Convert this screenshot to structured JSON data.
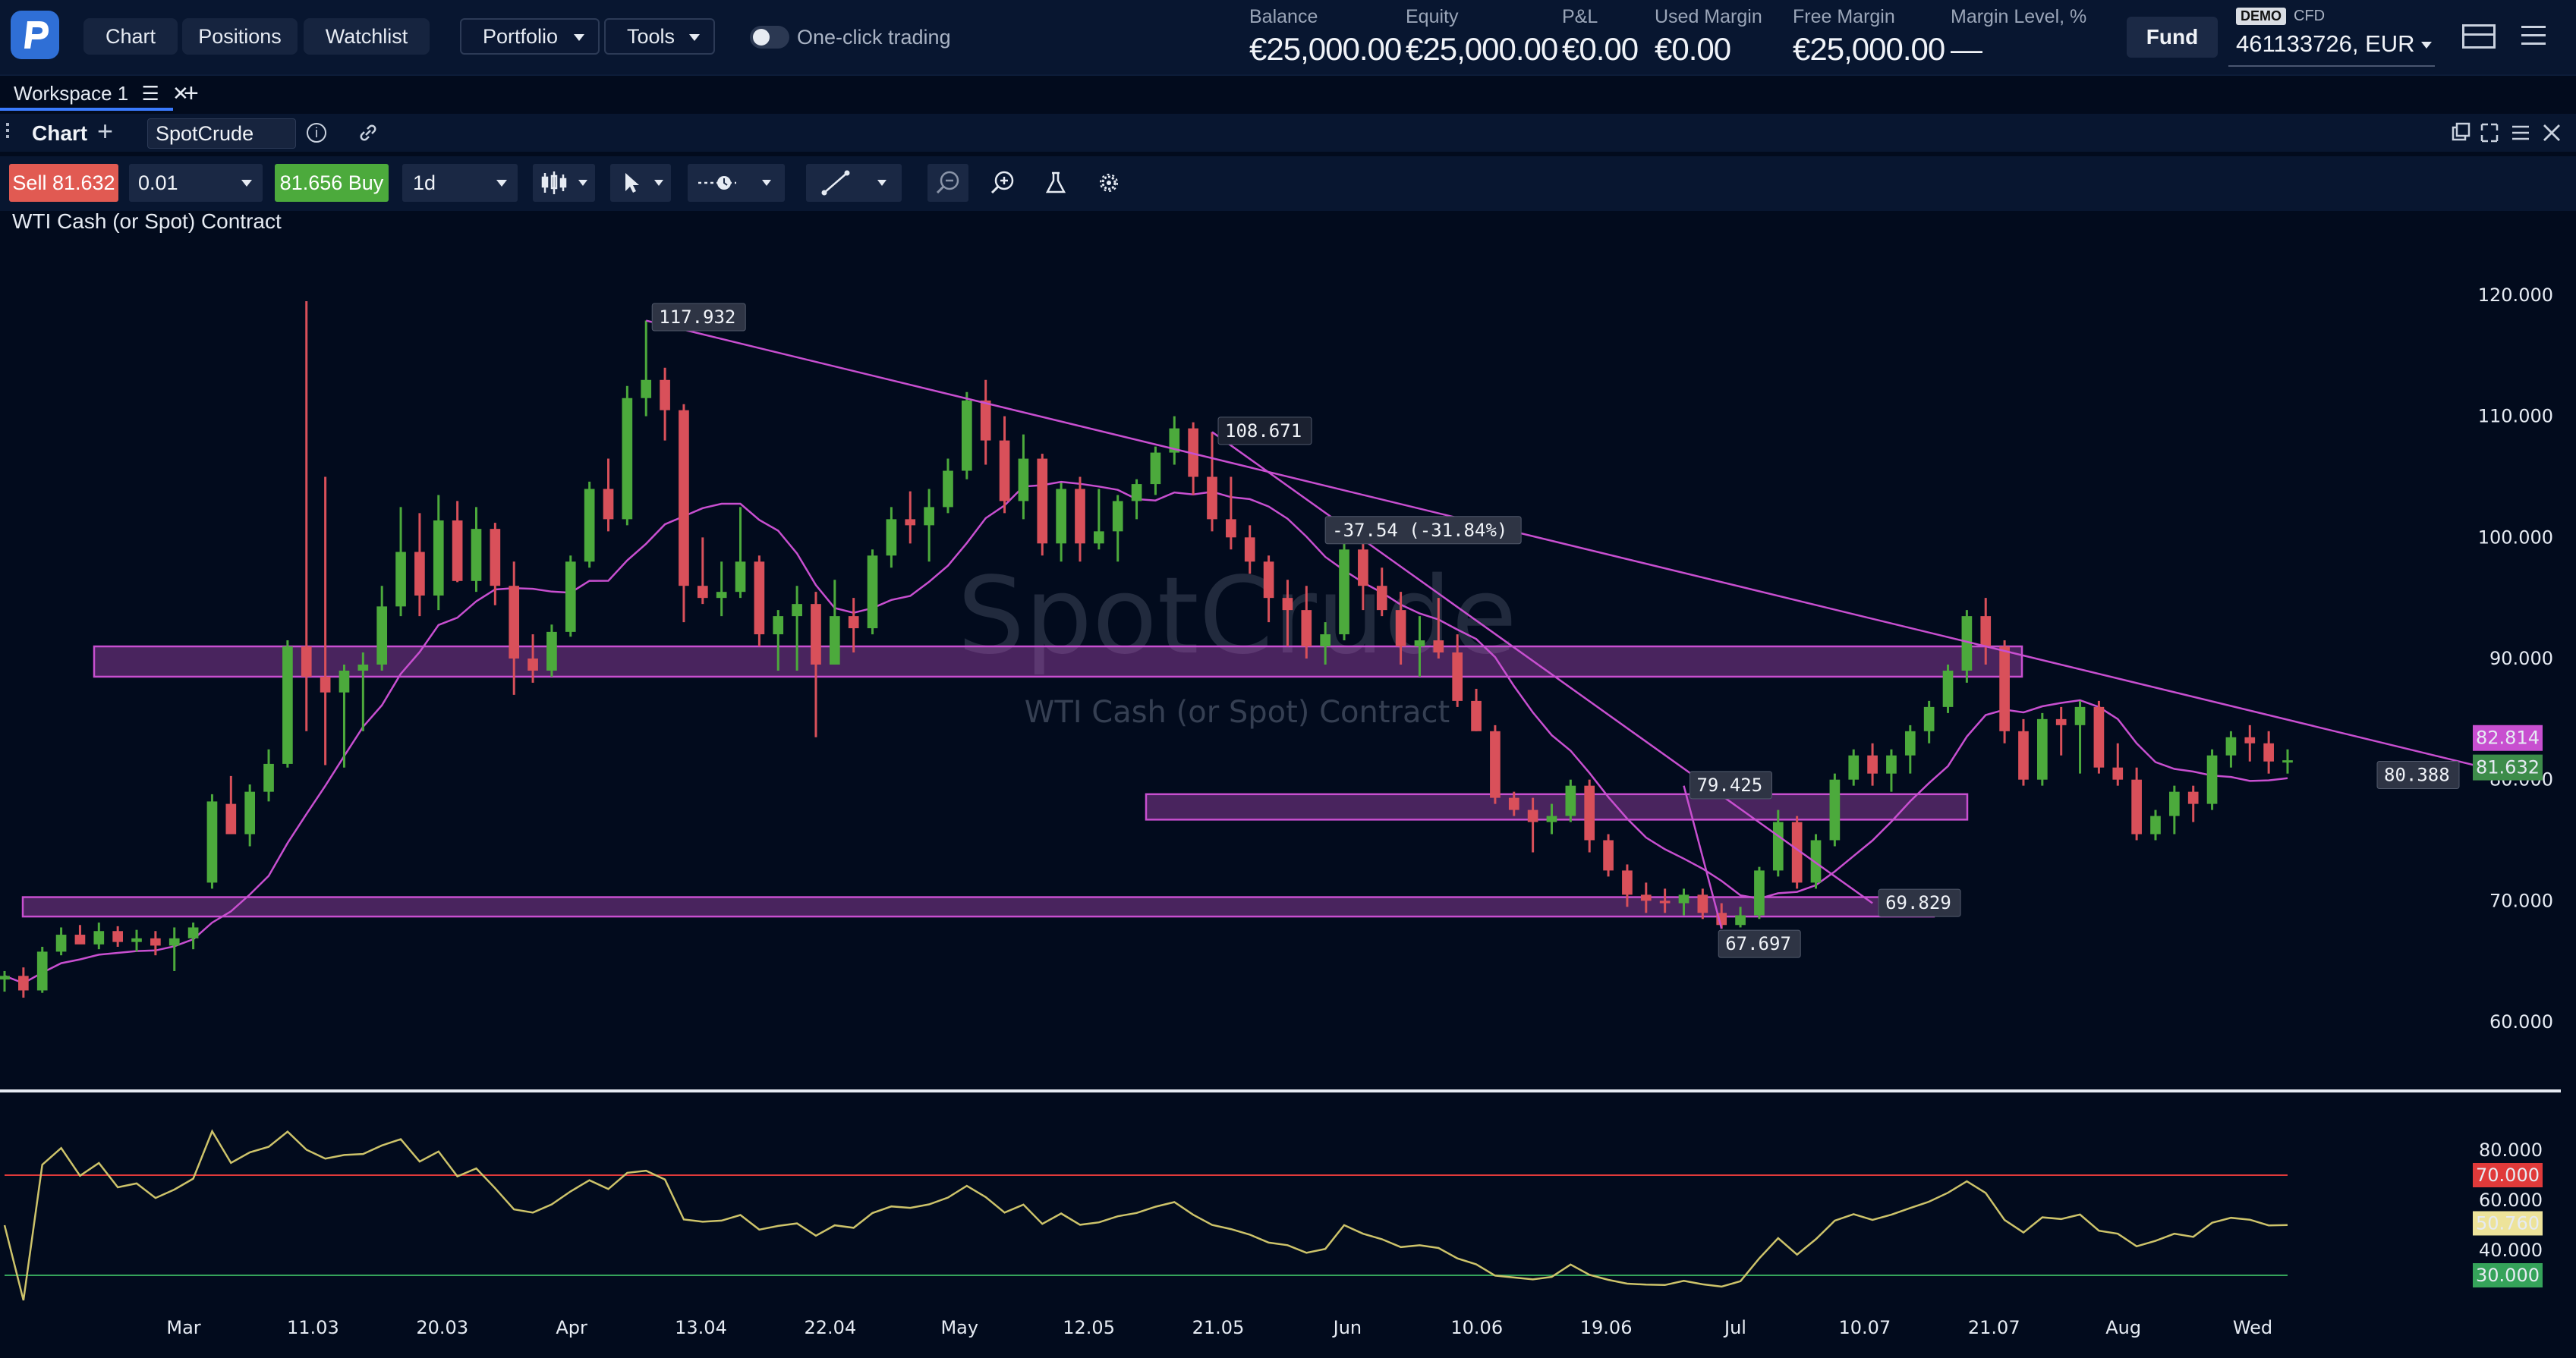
{
  "nav": {
    "items": [
      {
        "label": "Chart"
      },
      {
        "label": "Positions"
      },
      {
        "label": "Watchlist"
      }
    ],
    "portfolio_label": "Portfolio",
    "tools_label": "Tools",
    "one_click_label": "One-click trading"
  },
  "account": {
    "fields": [
      {
        "label": "Balance",
        "value": "€25,000.00"
      },
      {
        "label": "Equity",
        "value": "€25,000.00"
      },
      {
        "label": "P&L",
        "value": "€0.00"
      },
      {
        "label": "Used Margin",
        "value": "€0.00"
      },
      {
        "label": "Free Margin",
        "value": "€25,000.00"
      },
      {
        "label": "Margin Level, %",
        "value": "—"
      }
    ],
    "fund_label": "Fund",
    "demo_badge": "DEMO",
    "cfd_label": "CFD",
    "account_id": "461133726, EUR"
  },
  "workspace": {
    "tab_label": "Workspace 1",
    "menu_glyph": "☰",
    "close_glyph": "✕",
    "add_glyph": "+"
  },
  "chart_header": {
    "title": "Chart",
    "add_glyph": "+",
    "symbol": "SpotCrude",
    "info_glyph": "i"
  },
  "toolbar": {
    "sell_label": "Sell",
    "sell_price": "81.632",
    "quantity": "0.01",
    "buy_price": "81.656",
    "buy_label": "Buy",
    "timeframe": "1d"
  },
  "chart_description": "WTI Cash (or Spot) Contract",
  "watermark": {
    "symbol": "SpotCrude",
    "description": "WTI Cash (or Spot) Contract"
  },
  "colors": {
    "up": "#4caa3c",
    "down": "#d9505a",
    "indicator": "#c84fd0",
    "rsi": "#cdc36a",
    "sell": "#e15a52",
    "buy": "#4caa3c"
  },
  "chart_data": {
    "type": "candlestick",
    "symbol": "SpotCrude",
    "y_ticks": [
      "120.000",
      "110.000",
      "100.000",
      "90.000",
      "80.000",
      "70.000",
      "60.000"
    ],
    "y_tick_values": [
      120,
      110,
      100,
      90,
      80,
      70,
      60
    ],
    "x_ticks": [
      "Mar",
      "11.03",
      "20.03",
      "Apr",
      "13.04",
      "22.04",
      "May",
      "12.05",
      "21.05",
      "Jun",
      "10.06",
      "19.06",
      "Jul",
      "10.07",
      "21.07",
      "Aug",
      "Wed"
    ],
    "annotations": [
      {
        "label": "117.932",
        "kind": "high"
      },
      {
        "label": "108.671",
        "kind": "point"
      },
      {
        "label": "-37.54 (-31.84%)",
        "kind": "measure"
      },
      {
        "label": "79.425",
        "kind": "point"
      },
      {
        "label": "69.829",
        "kind": "point"
      },
      {
        "label": "67.697",
        "kind": "low"
      },
      {
        "label": "80.388",
        "kind": "trendline-end"
      }
    ],
    "price_tags": [
      {
        "label": "82.814",
        "color": "#c84fd0"
      },
      {
        "label": "81.632",
        "color": "#3d8c4a"
      }
    ],
    "candles_ohlc": [
      [
        63.5,
        64.2,
        62.5,
        63.8
      ],
      [
        63.8,
        64.5,
        62.0,
        62.6
      ],
      [
        62.6,
        66.2,
        62.4,
        65.8
      ],
      [
        65.8,
        67.8,
        65.5,
        67.2
      ],
      [
        67.2,
        68.0,
        66.5,
        66.4
      ],
      [
        66.4,
        68.2,
        66.0,
        67.5
      ],
      [
        67.5,
        67.9,
        66.2,
        66.6
      ],
      [
        66.6,
        67.6,
        65.8,
        66.9
      ],
      [
        66.9,
        67.5,
        65.5,
        66.3
      ],
      [
        66.3,
        67.8,
        64.2,
        66.9
      ],
      [
        66.9,
        68.2,
        66.0,
        67.8
      ],
      [
        71.5,
        78.8,
        71.0,
        78.2
      ],
      [
        78.0,
        80.3,
        76.5,
        75.5
      ],
      [
        75.5,
        79.6,
        74.5,
        79.0
      ],
      [
        79.0,
        82.5,
        78.2,
        81.3
      ],
      [
        81.3,
        91.5,
        81.0,
        91.0
      ],
      [
        91.0,
        119.5,
        84.0,
        88.5
      ],
      [
        88.5,
        105.0,
        81.2,
        87.2
      ],
      [
        87.2,
        89.5,
        81.0,
        89.0
      ],
      [
        89.0,
        90.5,
        84.0,
        89.5
      ],
      [
        89.5,
        96.0,
        89.0,
        94.3
      ],
      [
        94.3,
        102.5,
        93.5,
        98.8
      ],
      [
        98.8,
        102.0,
        93.5,
        95.2
      ],
      [
        95.2,
        103.5,
        94.0,
        101.4
      ],
      [
        101.4,
        103.0,
        96.3,
        96.4
      ],
      [
        96.4,
        102.5,
        95.5,
        100.7
      ],
      [
        100.7,
        101.2,
        94.4,
        96.0
      ],
      [
        96.0,
        98.0,
        87.0,
        90.0
      ],
      [
        90.0,
        92.0,
        88.0,
        89.0
      ],
      [
        89.0,
        92.8,
        88.5,
        92.2
      ],
      [
        92.2,
        98.5,
        91.8,
        98.0
      ],
      [
        98.0,
        104.6,
        97.5,
        104.0
      ],
      [
        104.0,
        106.5,
        100.5,
        101.5
      ],
      [
        101.5,
        112.5,
        101.0,
        111.5
      ],
      [
        111.5,
        117.9,
        110.0,
        113.0
      ],
      [
        113.0,
        114.0,
        108.0,
        110.5
      ],
      [
        110.5,
        111.0,
        93.0,
        96.0
      ],
      [
        96.0,
        100.0,
        94.5,
        95.0
      ],
      [
        95.0,
        98.0,
        93.5,
        95.5
      ],
      [
        95.5,
        102.5,
        95.0,
        98.0
      ],
      [
        98.0,
        98.5,
        91.0,
        92.0
      ],
      [
        92.0,
        94.0,
        89.0,
        93.5
      ],
      [
        93.5,
        96.0,
        89.0,
        94.5
      ],
      [
        94.5,
        95.5,
        83.5,
        89.5
      ],
      [
        89.5,
        96.5,
        89.5,
        93.5
      ],
      [
        93.5,
        95.0,
        90.5,
        92.5
      ],
      [
        92.5,
        99.0,
        92.0,
        98.5
      ],
      [
        98.5,
        102.5,
        97.5,
        101.5
      ],
      [
        101.5,
        103.8,
        99.5,
        101.0
      ],
      [
        101.0,
        104.0,
        98.0,
        102.5
      ],
      [
        102.5,
        106.5,
        102.0,
        105.5
      ],
      [
        105.5,
        112.0,
        104.8,
        111.3
      ],
      [
        111.3,
        113.0,
        106.0,
        108.0
      ],
      [
        108.0,
        110.0,
        102.0,
        103.0
      ],
      [
        103.0,
        108.5,
        101.5,
        106.5
      ],
      [
        106.5,
        106.9,
        98.5,
        99.5
      ],
      [
        99.5,
        104.5,
        98.0,
        104.0
      ],
      [
        104.0,
        105.0,
        98.0,
        99.5
      ],
      [
        99.5,
        104.0,
        99.0,
        100.5
      ],
      [
        100.5,
        103.5,
        98.0,
        103.0
      ],
      [
        103.0,
        104.8,
        101.5,
        104.4
      ],
      [
        104.4,
        107.5,
        103.5,
        107.0
      ],
      [
        107.0,
        110.0,
        106.0,
        109.0
      ],
      [
        109.0,
        109.5,
        103.5,
        105.0
      ],
      [
        105.0,
        108.7,
        100.5,
        101.5
      ],
      [
        101.5,
        105.0,
        99.0,
        100.0
      ],
      [
        100.0,
        101.0,
        97.0,
        98.0
      ],
      [
        98.0,
        98.5,
        93.0,
        95.0
      ],
      [
        95.0,
        96.5,
        91.0,
        94.0
      ],
      [
        94.0,
        96.0,
        90.0,
        91.0
      ],
      [
        91.0,
        93.0,
        89.5,
        92.0
      ],
      [
        92.0,
        99.5,
        91.5,
        99.0
      ],
      [
        99.0,
        99.5,
        94.0,
        96.0
      ],
      [
        96.0,
        97.5,
        93.5,
        94.0
      ],
      [
        94.0,
        95.5,
        89.5,
        91.0
      ],
      [
        91.0,
        93.5,
        88.5,
        91.5
      ],
      [
        91.5,
        95.0,
        90.0,
        90.5
      ],
      [
        90.5,
        92.0,
        86.0,
        86.5
      ],
      [
        86.5,
        87.5,
        84.0,
        84.0
      ],
      [
        84.0,
        84.5,
        78.0,
        78.5
      ],
      [
        78.5,
        79.0,
        77.0,
        77.5
      ],
      [
        77.5,
        78.5,
        74.0,
        76.5
      ],
      [
        76.5,
        78.0,
        75.5,
        77.0
      ],
      [
        77.0,
        80.0,
        76.5,
        79.5
      ],
      [
        79.5,
        80.0,
        74.0,
        75.0
      ],
      [
        75.0,
        75.5,
        72.0,
        72.5
      ],
      [
        72.5,
        73.0,
        69.5,
        70.5
      ],
      [
        70.5,
        71.5,
        69.0,
        70.0
      ],
      [
        70.0,
        71.0,
        69.0,
        69.8
      ],
      [
        69.8,
        71.0,
        68.8,
        70.5
      ],
      [
        70.5,
        71.0,
        68.5,
        69.0
      ],
      [
        69.0,
        69.8,
        67.7,
        68.0
      ],
      [
        68.0,
        69.5,
        67.8,
        68.8
      ],
      [
        68.8,
        72.8,
        68.5,
        72.5
      ],
      [
        72.5,
        77.5,
        72.0,
        76.5
      ],
      [
        76.5,
        77.0,
        71.0,
        71.5
      ],
      [
        71.5,
        75.5,
        71.0,
        75.0
      ],
      [
        75.0,
        80.5,
        74.5,
        80.0
      ],
      [
        80.0,
        82.5,
        79.5,
        82.0
      ],
      [
        82.0,
        83.0,
        79.5,
        80.5
      ],
      [
        80.5,
        82.5,
        79.0,
        82.0
      ],
      [
        82.0,
        84.5,
        80.5,
        84.0
      ],
      [
        84.0,
        86.5,
        83.0,
        86.0
      ],
      [
        86.0,
        89.5,
        85.5,
        89.0
      ],
      [
        89.0,
        94.0,
        88.0,
        93.5
      ],
      [
        93.5,
        95.0,
        89.5,
        91.0
      ],
      [
        91.0,
        91.5,
        83.0,
        84.0
      ],
      [
        84.0,
        85.0,
        79.5,
        80.0
      ],
      [
        80.0,
        85.5,
        79.5,
        85.0
      ],
      [
        85.0,
        86.0,
        82.0,
        84.5
      ],
      [
        84.5,
        86.5,
        80.5,
        86.0
      ],
      [
        86.0,
        86.5,
        80.5,
        81.0
      ],
      [
        81.0,
        83.0,
        79.5,
        80.0
      ],
      [
        80.0,
        81.0,
        75.0,
        75.5
      ],
      [
        75.5,
        77.5,
        75.0,
        77.0
      ],
      [
        77.0,
        79.5,
        75.5,
        79.0
      ],
      [
        79.0,
        79.5,
        76.5,
        78.0
      ],
      [
        78.0,
        82.5,
        77.5,
        82.0
      ],
      [
        82.0,
        84.0,
        81.0,
        83.5
      ],
      [
        83.5,
        84.5,
        81.5,
        83.0
      ],
      [
        83.0,
        84.0,
        80.5,
        81.5
      ],
      [
        81.5,
        82.5,
        80.5,
        81.6
      ]
    ],
    "rsi_ticks": [
      "80.000",
      "60.000",
      "40.000"
    ],
    "rsi_levels": [
      {
        "label": "70.000",
        "color": "#e03a3a"
      },
      {
        "label": "30.000",
        "color": "#35a35a"
      }
    ],
    "rsi_current": "50.760"
  }
}
